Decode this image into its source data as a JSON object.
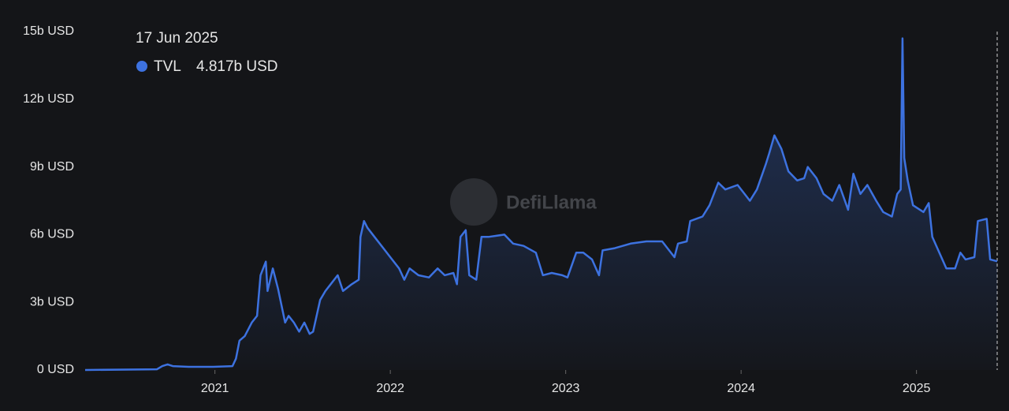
{
  "chart_data": {
    "type": "area",
    "x": [
      2020.26,
      2020.67,
      2020.7,
      2020.73,
      2020.76,
      2020.85,
      2020.99,
      2021.1,
      2021.12,
      2021.14,
      2021.17,
      2021.21,
      2021.24,
      2021.26,
      2021.29,
      2021.3,
      2021.33,
      2021.36,
      2021.4,
      2021.42,
      2021.45,
      2021.48,
      2021.51,
      2021.54,
      2021.56,
      2021.6,
      2021.63,
      2021.66,
      2021.7,
      2021.73,
      2021.78,
      2021.82,
      2021.83,
      2021.85,
      2021.87,
      2021.91,
      2021.96,
      2022.0,
      2022.05,
      2022.08,
      2022.11,
      2022.16,
      2022.22,
      2022.27,
      2022.31,
      2022.36,
      2022.38,
      2022.4,
      2022.43,
      2022.45,
      2022.49,
      2022.52,
      2022.56,
      2022.65,
      2022.7,
      2022.76,
      2022.83,
      2022.87,
      2022.92,
      2022.98,
      2023.01,
      2023.06,
      2023.1,
      2023.15,
      2023.19,
      2023.21,
      2023.28,
      2023.37,
      2023.46,
      2023.55,
      2023.62,
      2023.64,
      2023.69,
      2023.71,
      2023.78,
      2023.82,
      2023.87,
      2023.91,
      2023.98,
      2024.02,
      2024.05,
      2024.09,
      2024.14,
      2024.16,
      2024.19,
      2024.23,
      2024.27,
      2024.32,
      2024.36,
      2024.38,
      2024.43,
      2024.47,
      2024.52,
      2024.56,
      2024.61,
      2024.64,
      2024.68,
      2024.72,
      2024.77,
      2024.81,
      2024.86,
      2024.89,
      2024.91,
      2024.92,
      2024.93,
      2024.95,
      2024.98,
      2025.04,
      2025.07,
      2025.09,
      2025.13,
      2025.17,
      2025.22,
      2025.25,
      2025.28,
      2025.33,
      2025.35,
      2025.4,
      2025.42,
      2025.46
    ],
    "series": [
      {
        "name": "TVL",
        "color": "#3d72e0",
        "values": [
          0,
          0.03,
          0.17,
          0.25,
          0.17,
          0.14,
          0.14,
          0.17,
          0.5,
          1.3,
          1.5,
          2.1,
          2.4,
          4.2,
          4.8,
          3.5,
          4.5,
          3.6,
          2.1,
          2.4,
          2.1,
          1.7,
          2.1,
          1.6,
          1.7,
          3.1,
          3.5,
          3.8,
          4.2,
          3.5,
          3.8,
          4.0,
          5.9,
          6.6,
          6.3,
          5.9,
          5.4,
          5.0,
          4.5,
          4.0,
          4.5,
          4.2,
          4.1,
          4.5,
          4.2,
          4.3,
          3.8,
          5.9,
          6.2,
          4.2,
          4.0,
          5.9,
          5.9,
          6.0,
          5.6,
          5.5,
          5.2,
          4.2,
          4.3,
          4.2,
          4.1,
          5.2,
          5.2,
          4.9,
          4.2,
          5.3,
          5.4,
          5.6,
          5.7,
          5.7,
          5.0,
          5.6,
          5.7,
          6.6,
          6.8,
          7.3,
          8.3,
          8.0,
          8.2,
          7.8,
          7.5,
          8.0,
          9.1,
          9.6,
          10.4,
          9.8,
          8.8,
          8.4,
          8.5,
          9.0,
          8.5,
          7.8,
          7.5,
          8.2,
          7.1,
          8.7,
          7.8,
          8.2,
          7.5,
          7.0,
          6.8,
          7.8,
          8.0,
          14.7,
          9.4,
          8.4,
          7.3,
          7.0,
          7.4,
          5.9,
          5.2,
          4.5,
          4.5,
          5.2,
          4.9,
          5.0,
          6.6,
          6.7,
          4.9,
          4.817
        ]
      }
    ],
    "xlim": [
      2020.26,
      2025.46
    ],
    "xticks": [
      2021,
      2022,
      2023,
      2024,
      2025
    ],
    "ylim": [
      0,
      15
    ],
    "yticks": [
      {
        "value": 0,
        "label": "0 USD"
      },
      {
        "value": 3,
        "label": "3b USD"
      },
      {
        "value": 6,
        "label": "6b USD"
      },
      {
        "value": 9,
        "label": "9b USD"
      },
      {
        "value": 12,
        "label": "12b USD"
      },
      {
        "value": 15,
        "label": "15b USD"
      }
    ],
    "grid": false,
    "tooltip": {
      "date": "17 Jun 2025",
      "value": 4.817,
      "value_label": "4.817b USD"
    },
    "watermark": "DefiLlama"
  }
}
